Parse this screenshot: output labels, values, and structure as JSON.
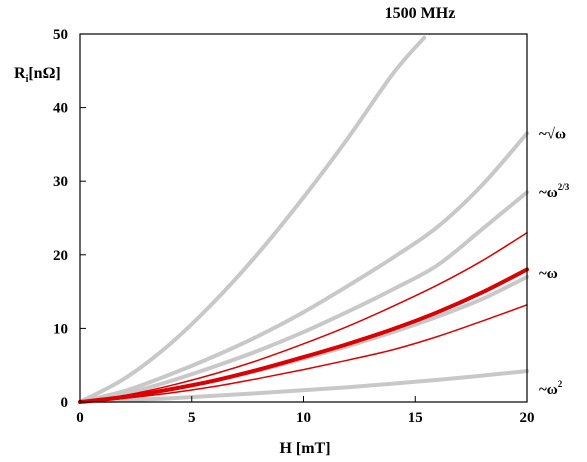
{
  "chart_data": {
    "type": "line",
    "title": "1500 MHz",
    "xlabel": "H [mT]",
    "ylabel_main": "R",
    "ylabel_sub": "i",
    "ylabel_unit": "[nΩ]",
    "xlim": [
      0,
      20
    ],
    "ylim": [
      0,
      50
    ],
    "xticks": [
      0,
      5,
      10,
      15,
      20
    ],
    "yticks": [
      0,
      10,
      20,
      30,
      40,
      50
    ],
    "grid": false,
    "colors": {
      "gray": "#c8c8c8",
      "red": "#dd0000"
    },
    "series": [
      {
        "id": "gray-steep",
        "color": "gray",
        "width": 4,
        "x": [
          0,
          2,
          4,
          6,
          8,
          10,
          12,
          14,
          15.4
        ],
        "y": [
          0,
          3.2,
          7.8,
          13.6,
          20.3,
          27.8,
          35.9,
          44.6,
          49.5
        ]
      },
      {
        "id": "gray-sqrt",
        "color": "gray",
        "width": 4,
        "x": [
          0,
          2,
          4,
          6,
          8,
          10,
          12,
          14,
          16,
          18,
          20
        ],
        "y": [
          0,
          1.5,
          3.7,
          6.2,
          9.0,
          12.2,
          15.8,
          19.6,
          23.8,
          29.5,
          36.5
        ]
      },
      {
        "id": "gray-23",
        "color": "gray",
        "width": 4,
        "x": [
          0,
          2,
          4,
          6,
          8,
          10,
          12,
          14,
          16,
          18,
          20
        ],
        "y": [
          0,
          1.1,
          2.8,
          4.8,
          7.0,
          9.5,
          12.3,
          15.3,
          18.6,
          23.5,
          28.5
        ]
      },
      {
        "id": "gray-omega",
        "color": "gray",
        "width": 4,
        "x": [
          0,
          2,
          4,
          6,
          8,
          10,
          12,
          14,
          16,
          18,
          20
        ],
        "y": [
          0,
          0.7,
          1.7,
          2.9,
          4.3,
          5.9,
          7.6,
          9.5,
          11.6,
          14.0,
          17.0
        ]
      },
      {
        "id": "gray-omega2",
        "color": "gray",
        "width": 4,
        "x": [
          0,
          4,
          8,
          12,
          16,
          20
        ],
        "y": [
          0,
          0.5,
          1.2,
          2.0,
          3.0,
          4.2
        ]
      },
      {
        "id": "red-upper",
        "color": "red",
        "width": 1.5,
        "x": [
          0,
          2,
          4,
          6,
          8,
          10,
          12,
          14,
          16,
          18,
          20
        ],
        "y": [
          0,
          0.9,
          2.2,
          3.8,
          5.7,
          7.9,
          10.3,
          13.0,
          15.9,
          19.2,
          23.0
        ]
      },
      {
        "id": "red-main",
        "color": "red",
        "width": 4,
        "x": [
          0,
          2,
          4,
          6,
          8,
          10,
          12,
          14,
          16,
          18,
          20
        ],
        "y": [
          0,
          0.7,
          1.7,
          2.9,
          4.4,
          6.1,
          7.9,
          9.9,
          12.2,
          14.9,
          18.0
        ]
      },
      {
        "id": "red-lower",
        "color": "red",
        "width": 1.5,
        "x": [
          0,
          2,
          4,
          6,
          8,
          10,
          12,
          14,
          16,
          18,
          20
        ],
        "y": [
          0,
          0.5,
          1.2,
          2.1,
          3.2,
          4.4,
          5.7,
          7.1,
          8.9,
          11.0,
          13.2
        ]
      }
    ],
    "annotations": [
      {
        "id": "sqrt",
        "text": "~√ω",
        "sup": "",
        "y": 36.5
      },
      {
        "id": "two-thirds",
        "text": "~ω",
        "sup": "2/3",
        "y": 28.5
      },
      {
        "id": "omega",
        "text": "~ω",
        "sup": "",
        "y": 17.5
      },
      {
        "id": "omega2",
        "text": "~ω",
        "sup": "2",
        "y": 1.8
      }
    ]
  }
}
